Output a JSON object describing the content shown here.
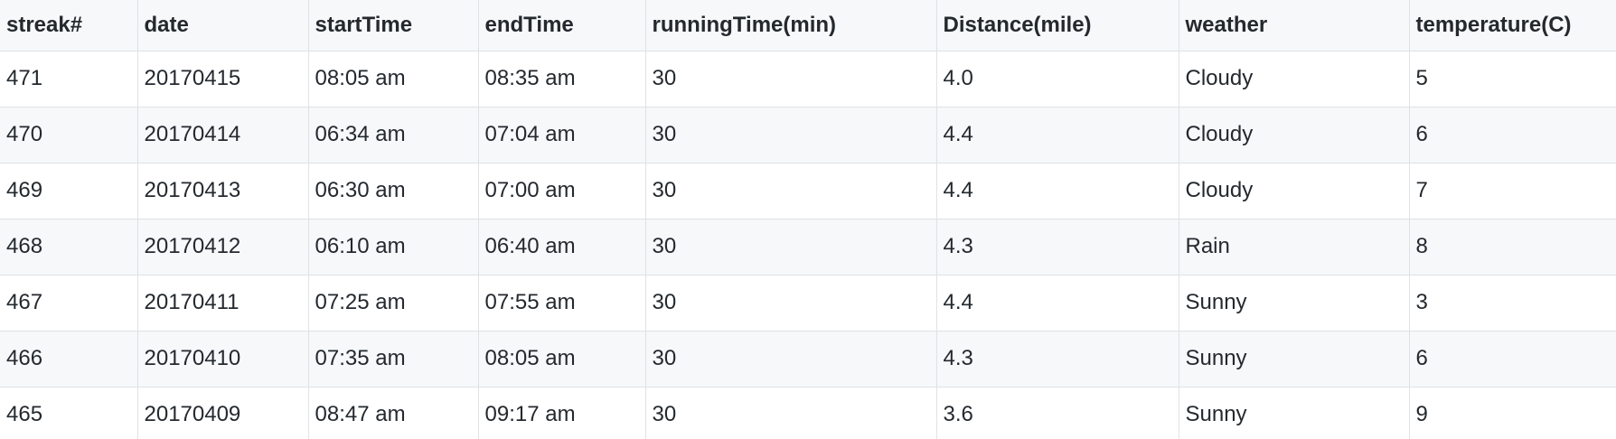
{
  "table": {
    "headers": [
      "streak#",
      "date",
      "startTime",
      "endTime",
      "runningTime(min)",
      "Distance(mile)",
      "weather",
      "temperature(C)"
    ],
    "rows": [
      [
        "471",
        "20170415",
        "08:05 am",
        "08:35 am",
        "30",
        "4.0",
        "Cloudy",
        "5"
      ],
      [
        "470",
        "20170414",
        "06:34 am",
        "07:04 am",
        "30",
        "4.4",
        "Cloudy",
        "6"
      ],
      [
        "469",
        "20170413",
        "06:30 am",
        "07:00 am",
        "30",
        "4.4",
        "Cloudy",
        "7"
      ],
      [
        "468",
        "20170412",
        "06:10 am",
        "06:40 am",
        "30",
        "4.3",
        "Rain",
        "8"
      ],
      [
        "467",
        "20170411",
        "07:25 am",
        "07:55 am",
        "30",
        "4.4",
        "Sunny",
        "3"
      ],
      [
        "466",
        "20170410",
        "07:35 am",
        "08:05 am",
        "30",
        "4.3",
        "Sunny",
        "6"
      ],
      [
        "465",
        "20170409",
        "08:47 am",
        "09:17 am",
        "30",
        "3.6",
        "Sunny",
        "9"
      ]
    ]
  },
  "colors": {
    "header_bg": "#f6f8fa",
    "stripe_bg": "#f6f8fa",
    "row_bg": "#ffffff",
    "border": "#dfe2e5",
    "text": "#24292e"
  }
}
